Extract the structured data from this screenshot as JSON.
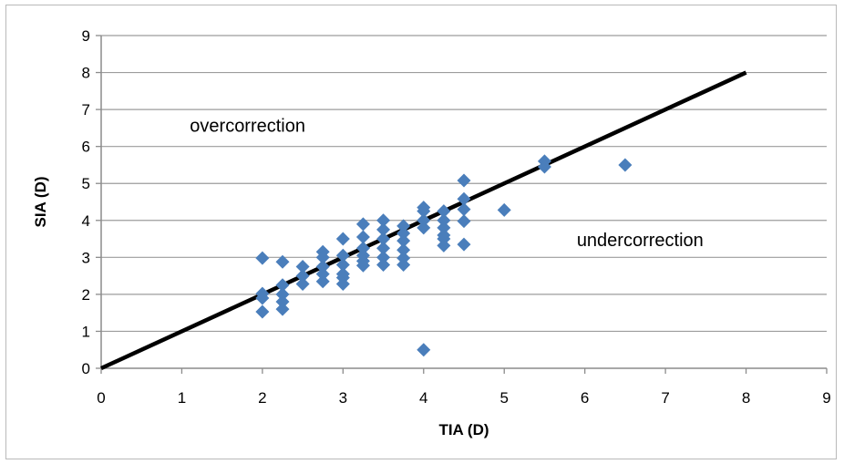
{
  "chart_data": {
    "type": "scatter",
    "title": "",
    "xlabel": "TIA (D)",
    "ylabel": "SIA (D)",
    "xlim": [
      0,
      9
    ],
    "ylim": [
      0,
      9
    ],
    "xticks": [
      "0",
      "1",
      "2",
      "3",
      "4",
      "5",
      "6",
      "7",
      "8",
      "9"
    ],
    "yticks": [
      "0",
      "1",
      "2",
      "3",
      "4",
      "5",
      "6",
      "7",
      "8",
      "9"
    ],
    "grid": "horizontal",
    "legend": "none",
    "colors": {
      "marker": "#4a7ebb",
      "line": "#000000",
      "grid": "#9c9c9c"
    },
    "reference_line": {
      "x": [
        0,
        8
      ],
      "y": [
        0,
        8
      ]
    },
    "annotations": [
      {
        "text": "overcorrection",
        "x": 1.1,
        "y": 6.4
      },
      {
        "text": "undercorrection",
        "x": 5.9,
        "y": 3.3
      }
    ],
    "points": [
      [
        2.0,
        2.98
      ],
      [
        2.0,
        2.02
      ],
      [
        2.0,
        1.9
      ],
      [
        2.0,
        1.53
      ],
      [
        2.25,
        2.88
      ],
      [
        2.25,
        2.25
      ],
      [
        2.25,
        2.0
      ],
      [
        2.25,
        1.8
      ],
      [
        2.25,
        1.6
      ],
      [
        2.5,
        2.75
      ],
      [
        2.5,
        2.5
      ],
      [
        2.5,
        2.28
      ],
      [
        2.75,
        3.15
      ],
      [
        2.75,
        3.0
      ],
      [
        2.75,
        2.75
      ],
      [
        2.75,
        2.55
      ],
      [
        2.75,
        2.35
      ],
      [
        3.0,
        3.5
      ],
      [
        3.0,
        3.05
      ],
      [
        3.0,
        2.8
      ],
      [
        3.0,
        2.55
      ],
      [
        3.0,
        2.45
      ],
      [
        3.0,
        2.28
      ],
      [
        3.25,
        3.9
      ],
      [
        3.25,
        3.55
      ],
      [
        3.25,
        3.25
      ],
      [
        3.25,
        3.05
      ],
      [
        3.25,
        2.9
      ],
      [
        3.25,
        2.78
      ],
      [
        3.5,
        4.0
      ],
      [
        3.5,
        3.75
      ],
      [
        3.5,
        3.5
      ],
      [
        3.5,
        3.25
      ],
      [
        3.5,
        3.0
      ],
      [
        3.5,
        2.8
      ],
      [
        3.75,
        3.85
      ],
      [
        3.75,
        3.65
      ],
      [
        3.75,
        3.45
      ],
      [
        3.75,
        3.2
      ],
      [
        3.75,
        2.98
      ],
      [
        3.75,
        2.8
      ],
      [
        4.0,
        4.35
      ],
      [
        4.0,
        4.25
      ],
      [
        4.0,
        4.0
      ],
      [
        4.0,
        3.8
      ],
      [
        4.0,
        0.5
      ],
      [
        4.25,
        4.25
      ],
      [
        4.25,
        4.0
      ],
      [
        4.25,
        3.8
      ],
      [
        4.25,
        3.6
      ],
      [
        4.25,
        3.5
      ],
      [
        4.25,
        3.32
      ],
      [
        4.5,
        5.08
      ],
      [
        4.5,
        4.58
      ],
      [
        4.5,
        4.3
      ],
      [
        4.5,
        3.98
      ],
      [
        4.5,
        3.35
      ],
      [
        5.0,
        4.28
      ],
      [
        5.5,
        5.6
      ],
      [
        5.5,
        5.45
      ],
      [
        6.5,
        5.5
      ]
    ]
  }
}
